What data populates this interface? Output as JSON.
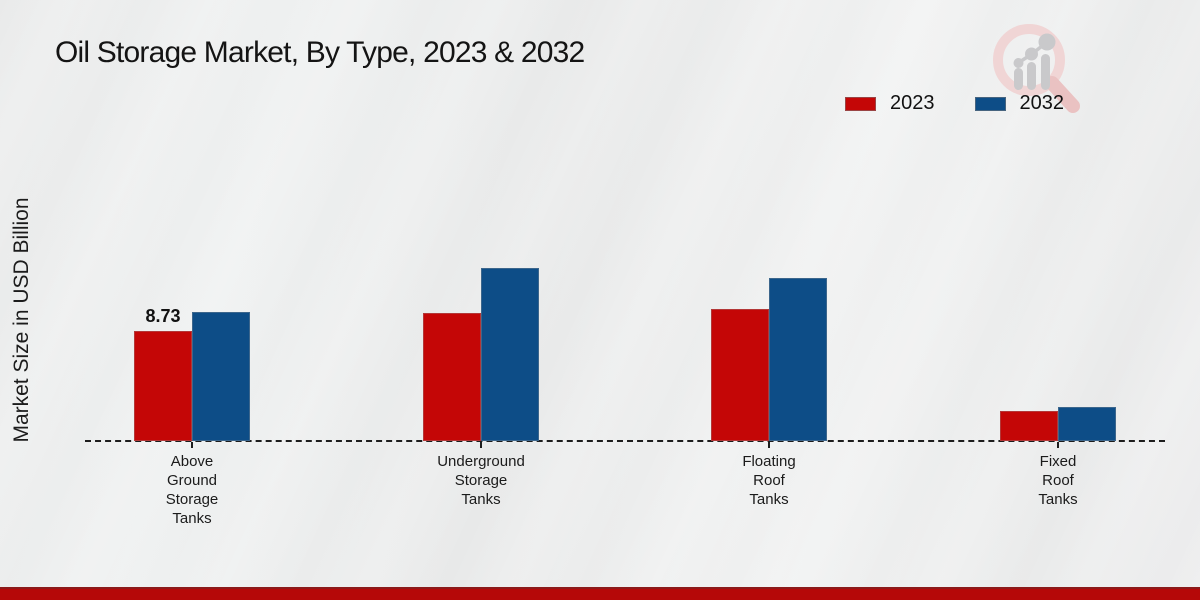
{
  "header": {
    "title": "Oil Storage Market, By Type, 2023 & 2032"
  },
  "chart_data": {
    "type": "bar",
    "title": "Oil Storage Market, By Type, 2023 & 2032",
    "xlabel": "",
    "ylabel": "Market Size in USD Billion",
    "categories": [
      "Above\nGround\nStorage\nTanks",
      "Underground\nStorage\nTanks",
      "Floating\nRoof\nTanks",
      "Fixed\nRoof\nTanks"
    ],
    "series": [
      {
        "name": "2023",
        "color": "#c40606",
        "values": [
          8.73,
          10.16,
          10.48,
          2.38
        ]
      },
      {
        "name": "2032",
        "color": "#0d4d87",
        "values": [
          10.24,
          13.73,
          12.94,
          2.7
        ]
      }
    ],
    "annotations": [
      {
        "series": "2023",
        "category_index": 0,
        "text": "8.73"
      }
    ],
    "ylim": [
      0,
      14
    ],
    "grid": false,
    "legend_position": "top-right",
    "axis_style": "dashed-baseline-only"
  },
  "logo": {
    "name": "market-research-magnifier-logo",
    "ring_color": "#f0d5d5",
    "handle_color": "#eac2c2",
    "bars_color": "#c9c9cb"
  },
  "footer": {
    "stripe_color": "#b50808"
  }
}
